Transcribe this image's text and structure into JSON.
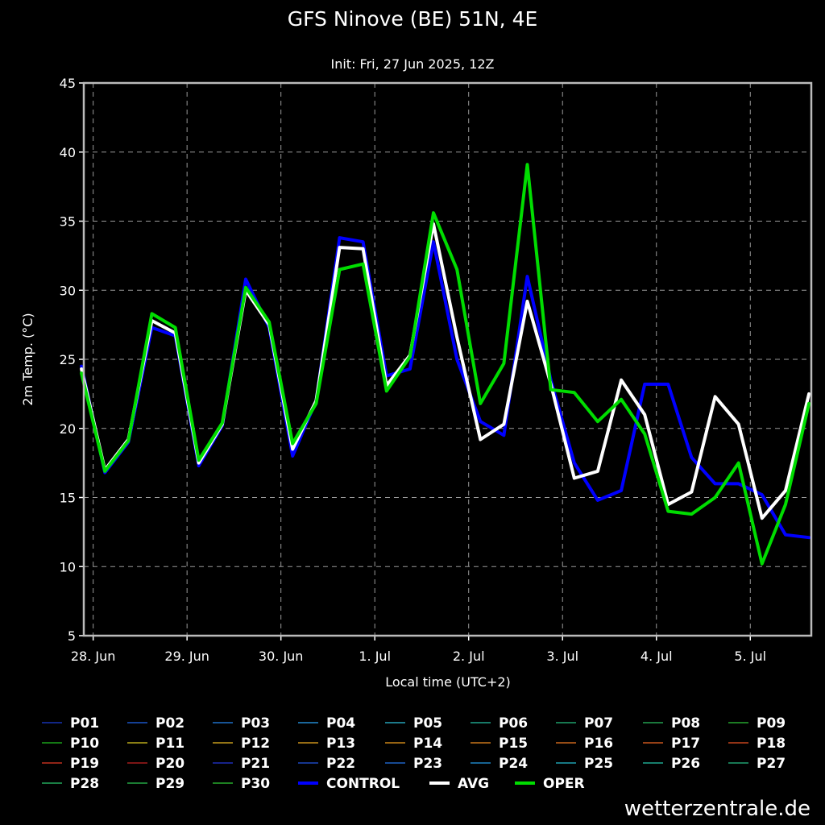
{
  "chart_data": {
    "type": "line",
    "title": "GFS Ninove (BE) 51N, 4E",
    "subtitle": "Init: Fri, 27 Jun 2025, 12Z",
    "xlabel": "Local time (UTC+2)",
    "ylabel": "2m Temp. (°C)",
    "ylim": [
      5,
      45
    ],
    "yticks": [
      5,
      10,
      15,
      20,
      25,
      30,
      35,
      40,
      45
    ],
    "xlim": [
      -0.1,
      7.65
    ],
    "xticks": [
      {
        "label": "28. Jun",
        "x": 0
      },
      {
        "label": "29. Jun",
        "x": 1
      },
      {
        "label": "30. Jun",
        "x": 2
      },
      {
        "label": "1. Jul",
        "x": 3
      },
      {
        "label": "2. Jul",
        "x": 4
      },
      {
        "label": "3. Jul",
        "x": 5
      },
      {
        "label": "4. Jul",
        "x": 6
      },
      {
        "label": "5. Jul",
        "x": 7
      }
    ],
    "grid": true,
    "legend_position": "bottom",
    "x": [
      -0.125,
      0.125,
      0.375,
      0.625,
      0.875,
      1.125,
      1.375,
      1.625,
      1.875,
      2.125,
      2.375,
      2.625,
      2.875,
      3.125,
      3.375,
      3.625,
      3.875,
      4.125,
      4.375,
      4.625,
      4.875,
      5.125,
      5.375,
      5.625,
      5.875,
      6.125,
      6.375,
      6.625,
      6.875,
      7.125,
      7.375,
      7.625
    ],
    "series": [
      {
        "name": "P01",
        "color": "#1733b3",
        "width": 1
      },
      {
        "name": "P02",
        "color": "#1a55c8",
        "width": 1
      },
      {
        "name": "P03",
        "color": "#1f70c9",
        "width": 1
      },
      {
        "name": "P04",
        "color": "#2389cf",
        "width": 1
      },
      {
        "name": "P05",
        "color": "#26a3b8",
        "width": 1
      },
      {
        "name": "P06",
        "color": "#1fa38a",
        "width": 1
      },
      {
        "name": "P07",
        "color": "#1f9f6a",
        "width": 1
      },
      {
        "name": "P08",
        "color": "#22a050",
        "width": 1
      },
      {
        "name": "P09",
        "color": "#26a62f",
        "width": 1
      },
      {
        "name": "P10",
        "color": "#1b9f1b",
        "width": 1
      },
      {
        "name": "P11",
        "color": "#b8a81a",
        "width": 1
      },
      {
        "name": "P12",
        "color": "#c49a1c",
        "width": 1
      },
      {
        "name": "P13",
        "color": "#c8901a",
        "width": 1
      },
      {
        "name": "P14",
        "color": "#c78419",
        "width": 1
      },
      {
        "name": "P15",
        "color": "#c7761a",
        "width": 1
      },
      {
        "name": "P16",
        "color": "#c8651c",
        "width": 1
      },
      {
        "name": "P17",
        "color": "#c8561d",
        "width": 1
      },
      {
        "name": "P18",
        "color": "#c4441e",
        "width": 1
      },
      {
        "name": "P19",
        "color": "#c0311f",
        "width": 1
      },
      {
        "name": "P20",
        "color": "#a61c1c",
        "width": 1
      },
      {
        "name": "P21",
        "color": "#1f2fb8",
        "width": 1
      },
      {
        "name": "P22",
        "color": "#1d49bf",
        "width": 1
      },
      {
        "name": "P23",
        "color": "#1f63c4",
        "width": 1
      },
      {
        "name": "P24",
        "color": "#1f85c4",
        "width": 1
      },
      {
        "name": "P25",
        "color": "#1f9fb0",
        "width": 1
      },
      {
        "name": "P26",
        "color": "#1fa890",
        "width": 1
      },
      {
        "name": "P27",
        "color": "#20a070",
        "width": 1
      },
      {
        "name": "P28",
        "color": "#22a85a",
        "width": 1
      },
      {
        "name": "P29",
        "color": "#24a644",
        "width": 1
      },
      {
        "name": "P30",
        "color": "#27aa2c",
        "width": 1
      },
      {
        "name": "CONTROL",
        "color": "#0000ff",
        "width": 4,
        "values": [
          24.5,
          16.8,
          19.0,
          27.3,
          26.7,
          17.3,
          20.2,
          30.8,
          27.3,
          18.0,
          22.0,
          33.8,
          33.5,
          23.8,
          24.3,
          33.5,
          25.0,
          20.5,
          19.5,
          31.0,
          23.5,
          17.5,
          14.8,
          15.5,
          23.2,
          23.2,
          17.9,
          16.0,
          16.0,
          15.2,
          12.3,
          12.1
        ]
      },
      {
        "name": "AVG",
        "color": "#ffffff",
        "width": 4,
        "values": [
          24.3,
          17.0,
          19.2,
          27.8,
          26.9,
          17.5,
          20.3,
          30.0,
          27.5,
          18.5,
          22.0,
          33.1,
          33.0,
          23.1,
          25.3,
          34.8,
          26.6,
          19.2,
          20.3,
          29.2,
          23.2,
          16.4,
          16.9,
          23.5,
          21.0,
          14.5,
          15.4,
          22.3,
          20.3,
          13.5,
          15.5,
          22.5
        ]
      },
      {
        "name": "OPER",
        "color": "#00dd00",
        "width": 4,
        "values": [
          24.0,
          16.9,
          19.1,
          28.3,
          27.3,
          17.7,
          20.4,
          30.2,
          27.7,
          18.9,
          21.8,
          31.5,
          31.9,
          22.7,
          25.2,
          35.6,
          31.5,
          21.8,
          24.7,
          39.1,
          22.8,
          22.6,
          20.5,
          22.1,
          19.6,
          14.0,
          13.8,
          15.0,
          17.5,
          10.2,
          14.5,
          21.8
        ]
      }
    ]
  },
  "watermark": "wetterzentrale.de"
}
